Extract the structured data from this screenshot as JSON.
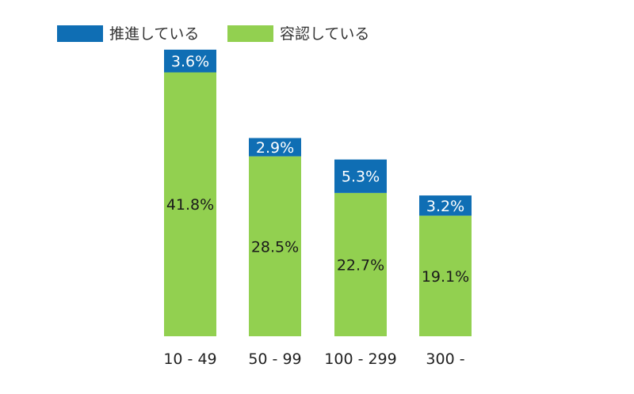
{
  "chart_data": {
    "type": "bar",
    "stacked": true,
    "categories": [
      "10 - 49",
      "50 - 99",
      "100 - 299",
      "300 -"
    ],
    "series": [
      {
        "name": "容認している",
        "color": "#92d050",
        "label_color": "#1a1a1a",
        "values": [
          41.8,
          28.5,
          22.7,
          19.1
        ],
        "labels": [
          "41.8%",
          "28.5%",
          "22.7%",
          "19.1%"
        ]
      },
      {
        "name": "推進している",
        "color": "#0f6eb4",
        "label_color": "#ffffff",
        "values": [
          3.6,
          2.9,
          5.3,
          3.2
        ],
        "labels": [
          "3.6%",
          "2.9%",
          "5.3%",
          "3.2%"
        ]
      }
    ],
    "legend_order": [
      1,
      0
    ],
    "legend_position": "top-left",
    "ylim": [
      0,
      47
    ],
    "grid": false,
    "axis_visible": false
  }
}
